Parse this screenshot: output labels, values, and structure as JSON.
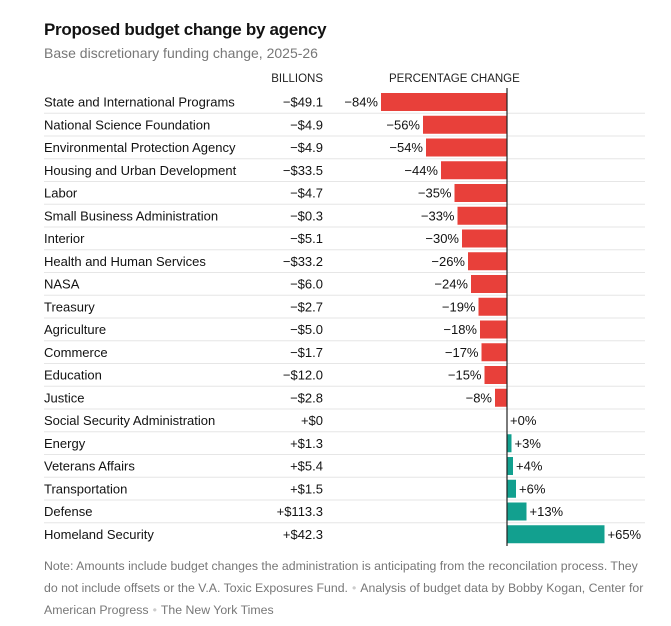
{
  "title": "Proposed budget change by agency",
  "subtitle": "Base discretionary funding change, 2025-26",
  "chart_data": {
    "type": "bar",
    "orientation": "horizontal",
    "title": "Proposed budget change by agency",
    "subtitle": "Base discretionary funding change, 2025-26",
    "column_headers": {
      "billions": "BILLIONS",
      "percent": "PERCENTAGE CHANGE"
    },
    "colors": {
      "negative": "#e8403a",
      "positive": "#12a08f"
    },
    "categories": [
      "State and International Programs",
      "National Science Foundation",
      "Environmental Protection Agency",
      "Housing and Urban Development",
      "Labor",
      "Small Business Administration",
      "Interior",
      "Health and Human Services",
      "NASA",
      "Treasury",
      "Agriculture",
      "Commerce",
      "Education",
      "Justice",
      "Social Security Administration",
      "Energy",
      "Veterans Affairs",
      "Transportation",
      "Defense",
      "Homeland Security"
    ],
    "billions_labels": [
      "−$49.1",
      "−$4.9",
      "−$4.9",
      "−$33.5",
      "−$4.7",
      "−$0.3",
      "−$5.1",
      "−$33.2",
      "−$6.0",
      "−$2.7",
      "−$5.0",
      "−$1.7",
      "−$12.0",
      "−$2.8",
      "+$0",
      "+$1.3",
      "+$5.4",
      "+$1.5",
      "+$113.3",
      "+$42.3"
    ],
    "values": [
      -84,
      -56,
      -54,
      -44,
      -35,
      -33,
      -30,
      -26,
      -24,
      -19,
      -18,
      -17,
      -15,
      -8,
      0,
      3,
      4,
      6,
      13,
      65
    ],
    "percent_labels": [
      "−84%",
      "−56%",
      "−54%",
      "−44%",
      "−35%",
      "−33%",
      "−30%",
      "−26%",
      "−24%",
      "−19%",
      "−18%",
      "−17%",
      "−15%",
      "−8%",
      "+0%",
      "+3%",
      "+4%",
      "+6%",
      "+13%",
      "+65%"
    ],
    "xlim": [
      -84,
      65
    ]
  },
  "note": {
    "text": "Note: Amounts include budget changes the administration is anticipating from the reconcilation process. They do not include offsets or the V.A. Toxic Exposures Fund.",
    "source": "Analysis of budget data by Bobby Kogan, Center for American Progress",
    "credit": "The New York Times"
  }
}
